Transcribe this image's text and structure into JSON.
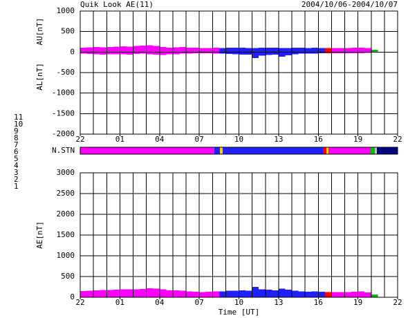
{
  "header": {
    "title": "Quik Look AE(11)",
    "date": "2004/10/06-2004/10/07"
  },
  "station_legend": [
    {
      "count": 11,
      "color": "#00e0e0"
    },
    {
      "count": 10,
      "color": "#ff00ff"
    },
    {
      "count": 9,
      "color": "#2020ff"
    },
    {
      "count": 8,
      "color": "#ffd000"
    },
    {
      "count": 7,
      "color": "#00c000"
    },
    {
      "count": 6,
      "color": "#ff0000"
    },
    {
      "count": 5,
      "color": "#c0c0c0"
    },
    {
      "count": 4,
      "color": "#808080"
    },
    {
      "count": 3,
      "color": "#009090"
    },
    {
      "count": 2,
      "color": "#a000a0"
    },
    {
      "count": 1,
      "color": "#000080"
    }
  ],
  "station_bar": {
    "label": "N.STN",
    "segments": [
      {
        "start": 0,
        "end": 10.14,
        "count": 10
      },
      {
        "start": 10.14,
        "end": 10.56,
        "count": 9
      },
      {
        "start": 10.56,
        "end": 10.77,
        "count": 8
      },
      {
        "start": 10.77,
        "end": 18.35,
        "count": 9
      },
      {
        "start": 18.35,
        "end": 18.61,
        "count": 6
      },
      {
        "start": 18.61,
        "end": 18.77,
        "count": 8
      },
      {
        "start": 18.77,
        "end": 21.96,
        "count": 10
      },
      {
        "start": 21.96,
        "end": 22.27,
        "count": 7
      },
      {
        "start": 22.27,
        "end": 22.43,
        "count": 5
      },
      {
        "start": 22.43,
        "end": 24,
        "count": 1
      }
    ]
  },
  "chart_data": [
    {
      "type": "range",
      "ylabel_upper": "AU[nT]",
      "ylabel_lower": "AL[nT]",
      "x": [
        0,
        0.5,
        1,
        1.5,
        2,
        2.5,
        3,
        3.5,
        4,
        4.5,
        5,
        5.5,
        6,
        6.5,
        7,
        7.5,
        8,
        8.5,
        9,
        9.5,
        10,
        10.5,
        11,
        11.5,
        12,
        12.5,
        13,
        13.5,
        14,
        14.5,
        15,
        15.5,
        16,
        16.5,
        17,
        17.5,
        18,
        18.5,
        19,
        19.5,
        20,
        20.5,
        21,
        21.5,
        22
      ],
      "series": [
        {
          "name": "AU",
          "values": [
            110,
            115,
            120,
            115,
            125,
            130,
            140,
            135,
            150,
            160,
            165,
            150,
            120,
            110,
            115,
            120,
            110,
            105,
            100,
            100,
            105,
            100,
            110,
            110,
            105,
            100,
            100,
            105,
            110,
            105,
            100,
            100,
            110,
            105,
            100,
            105,
            100,
            95,
            100,
            100,
            100,
            105,
            110,
            100,
            60
          ]
        },
        {
          "name": "AL",
          "values": [
            -40,
            -45,
            -50,
            -60,
            -50,
            -55,
            -50,
            -60,
            -45,
            -40,
            -50,
            -60,
            -70,
            -55,
            -50,
            -40,
            -35,
            -30,
            -25,
            -30,
            -35,
            -40,
            -45,
            -50,
            -60,
            -60,
            -150,
            -90,
            -70,
            -60,
            -110,
            -80,
            -50,
            -40,
            -35,
            -40,
            -30,
            -30,
            -25,
            -25,
            -25,
            -30,
            -30,
            -20,
            -10
          ]
        }
      ],
      "xlim": [
        0,
        24
      ],
      "xticks": [
        {
          "value": 0,
          "label": "22"
        },
        {
          "value": 3,
          "label": "01"
        },
        {
          "value": 6,
          "label": "04"
        },
        {
          "value": 9,
          "label": "07"
        },
        {
          "value": 12,
          "label": "10"
        },
        {
          "value": 15,
          "label": "13"
        },
        {
          "value": 18,
          "label": "16"
        },
        {
          "value": 21,
          "label": "19"
        },
        {
          "value": 24,
          "label": "22"
        }
      ],
      "xgrid": [
        0,
        1,
        2,
        3,
        4,
        5,
        6,
        7,
        8,
        9,
        10,
        11,
        12,
        13,
        14,
        15,
        16,
        17,
        18,
        19,
        20,
        21,
        22,
        23,
        24
      ],
      "ylim": [
        -2000,
        1000
      ],
      "yticks": [
        1000,
        500,
        0,
        -500,
        -1000,
        -1500,
        -2000
      ],
      "grid": true
    },
    {
      "type": "bar",
      "ylabel": "AE[nT]",
      "xlabel": "Time [UT]",
      "x": [
        0,
        0.5,
        1,
        1.5,
        2,
        2.5,
        3,
        3.5,
        4,
        4.5,
        5,
        5.5,
        6,
        6.5,
        7,
        7.5,
        8,
        8.5,
        9,
        9.5,
        10,
        10.5,
        11,
        11.5,
        12,
        12.5,
        13,
        13.5,
        14,
        14.5,
        15,
        15.5,
        16,
        16.5,
        17,
        17.5,
        18,
        18.5,
        19,
        19.5,
        20,
        20.5,
        21,
        21.5,
        22
      ],
      "values": [
        150,
        160,
        170,
        175,
        175,
        185,
        190,
        195,
        195,
        200,
        215,
        210,
        190,
        165,
        165,
        160,
        145,
        135,
        125,
        130,
        140,
        140,
        155,
        160,
        165,
        160,
        250,
        195,
        180,
        165,
        210,
        180,
        160,
        145,
        135,
        145,
        130,
        125,
        125,
        125,
        125,
        135,
        140,
        120,
        70
      ],
      "xlim": [
        0,
        24
      ],
      "xticks": [
        {
          "value": 0,
          "label": "22"
        },
        {
          "value": 3,
          "label": "01"
        },
        {
          "value": 6,
          "label": "04"
        },
        {
          "value": 9,
          "label": "07"
        },
        {
          "value": 12,
          "label": "10"
        },
        {
          "value": 15,
          "label": "13"
        },
        {
          "value": 18,
          "label": "16"
        },
        {
          "value": 21,
          "label": "19"
        },
        {
          "value": 24,
          "label": "22"
        }
      ],
      "xgrid": [
        0,
        1,
        2,
        3,
        4,
        5,
        6,
        7,
        8,
        9,
        10,
        11,
        12,
        13,
        14,
        15,
        16,
        17,
        18,
        19,
        20,
        21,
        22,
        23,
        24
      ],
      "ylim": [
        0,
        3000
      ],
      "yticks": [
        3000,
        2500,
        2000,
        1500,
        1000,
        500,
        0
      ],
      "grid": true
    }
  ]
}
